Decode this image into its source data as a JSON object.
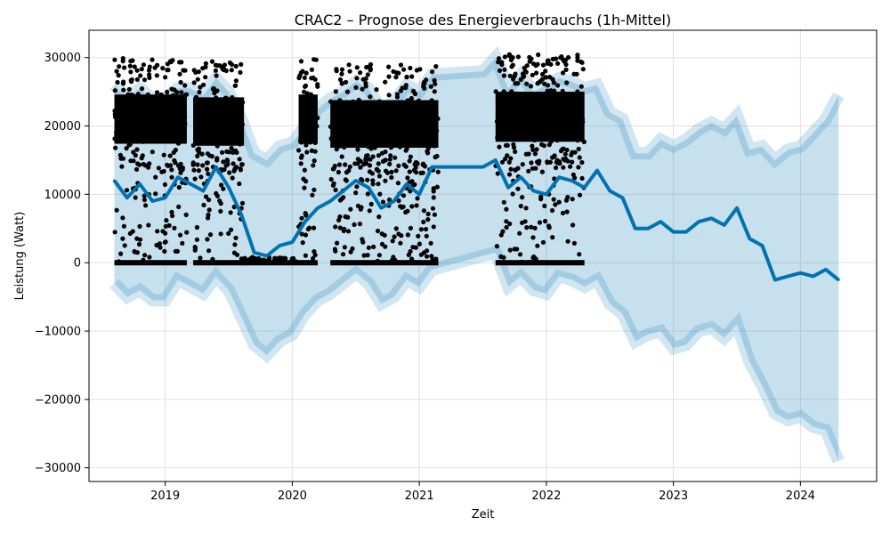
{
  "chart_data": {
    "type": "line",
    "title": "CRAC2 – Prognose des Energieverbrauchs (1h-Mittel)",
    "xlabel": "Zeit",
    "ylabel": "Leistung (Watt)",
    "xlim": [
      2018.4,
      2024.6
    ],
    "ylim": [
      -32000,
      34000
    ],
    "x_ticks": [
      2019,
      2020,
      2021,
      2022,
      2023,
      2024
    ],
    "x_tick_labels": [
      "2019",
      "2020",
      "2021",
      "2022",
      "2023",
      "2024"
    ],
    "y_ticks": [
      -30000,
      -20000,
      -10000,
      0,
      10000,
      20000,
      30000
    ],
    "y_tick_labels": [
      "−30000",
      "−20000",
      "−10000",
      "0",
      "10000",
      "20000",
      "30000"
    ],
    "grid": true,
    "colors": {
      "forecast_line": "#0072b2",
      "uncertainty_band": "#0072b2",
      "observations": "#000000"
    },
    "forecast": {
      "x": [
        2018.6,
        2018.7,
        2018.8,
        2018.9,
        2019.0,
        2019.1,
        2019.2,
        2019.3,
        2019.4,
        2019.5,
        2019.6,
        2019.7,
        2019.8,
        2019.9,
        2020.0,
        2020.1,
        2020.2,
        2020.3,
        2020.4,
        2020.5,
        2020.6,
        2020.7,
        2020.8,
        2020.9,
        2021.0,
        2021.1,
        2021.5,
        2021.6,
        2021.7,
        2021.8,
        2021.9,
        2022.0,
        2022.1,
        2022.2,
        2022.3,
        2022.4,
        2022.5,
        2022.6,
        2022.7,
        2022.8,
        2022.9,
        2023.0,
        2023.1,
        2023.2,
        2023.3,
        2023.4,
        2023.5,
        2023.6,
        2023.7,
        2023.8,
        2023.9,
        2024.0,
        2024.1,
        2024.2,
        2024.3
      ],
      "y": [
        12000,
        9500,
        11500,
        9000,
        9500,
        12500,
        11500,
        10500,
        14000,
        11000,
        7000,
        1500,
        1000,
        2500,
        3000,
        6000,
        8000,
        9000,
        10500,
        12000,
        11000,
        8000,
        9000,
        11500,
        10000,
        14000,
        14000,
        15000,
        11000,
        12500,
        10500,
        10000,
        12500,
        12000,
        11000,
        13500,
        10500,
        9500,
        5000,
        5000,
        6000,
        4500,
        4500,
        6000,
        6500,
        5500,
        8000,
        3500,
        2500,
        -2500,
        -2000,
        -1500,
        -2000,
        -1000,
        -2500
      ]
    },
    "band": {
      "x": [
        2018.6,
        2018.7,
        2018.8,
        2018.9,
        2019.0,
        2019.1,
        2019.2,
        2019.3,
        2019.4,
        2019.5,
        2019.6,
        2019.7,
        2019.8,
        2019.9,
        2020.0,
        2020.1,
        2020.2,
        2020.3,
        2020.4,
        2020.5,
        2020.6,
        2020.7,
        2020.8,
        2020.9,
        2021.0,
        2021.1,
        2021.5,
        2021.6,
        2021.7,
        2021.8,
        2021.9,
        2022.0,
        2022.1,
        2022.2,
        2022.3,
        2022.4,
        2022.5,
        2022.6,
        2022.7,
        2022.8,
        2022.9,
        2023.0,
        2023.1,
        2023.2,
        2023.3,
        2023.4,
        2023.5,
        2023.6,
        2023.7,
        2023.8,
        2023.9,
        2024.0,
        2024.1,
        2024.2,
        2024.3
      ],
      "upper": [
        26000,
        24000,
        25500,
        24000,
        24000,
        25500,
        25500,
        24500,
        27000,
        25000,
        21000,
        16000,
        15000,
        17000,
        17500,
        20000,
        22500,
        24000,
        25000,
        26500,
        25500,
        22500,
        23500,
        26000,
        25000,
        27500,
        28000,
        30000,
        25500,
        27500,
        25000,
        26000,
        27000,
        26500,
        25500,
        26000,
        22000,
        21000,
        16000,
        16000,
        18000,
        17000,
        18000,
        19500,
        20500,
        19500,
        21500,
        16500,
        17000,
        15000,
        16500,
        17000,
        19000,
        21000,
        24500
      ],
      "lower": [
        -3000,
        -5000,
        -4000,
        -5500,
        -5500,
        -2500,
        -3500,
        -4500,
        -2000,
        -4000,
        -8000,
        -12000,
        -13500,
        -11500,
        -10500,
        -7500,
        -5500,
        -4500,
        -3000,
        -1500,
        -3000,
        -6000,
        -5000,
        -2500,
        -3500,
        -1000,
        1000,
        1500,
        -3500,
        -2000,
        -4000,
        -4500,
        -2000,
        -2500,
        -3500,
        -2500,
        -6000,
        -7500,
        -11500,
        -10500,
        -10000,
        -12500,
        -12000,
        -10000,
        -9500,
        -11000,
        -9000,
        -14500,
        -18000,
        -22000,
        -23000,
        -22500,
        -24000,
        -24500,
        -29000
      ]
    },
    "observations": {
      "description_free": true,
      "segments": [
        {
          "x_start": 2018.6,
          "x_end": 2019.17,
          "low": 0,
          "high": 30000
        },
        {
          "x_start": 2019.22,
          "x_end": 2019.62,
          "low": 0,
          "high": 29500
        },
        {
          "x_start": 2019.6,
          "x_end": 2020.05,
          "low": 0,
          "high": 800
        },
        {
          "x_start": 2020.05,
          "x_end": 2020.2,
          "low": 0,
          "high": 30000
        },
        {
          "x_start": 2020.3,
          "x_end": 2021.15,
          "low": 0,
          "high": 29000
        },
        {
          "x_start": 2021.6,
          "x_end": 2022.3,
          "low": 0,
          "high": 30500
        }
      ]
    }
  }
}
